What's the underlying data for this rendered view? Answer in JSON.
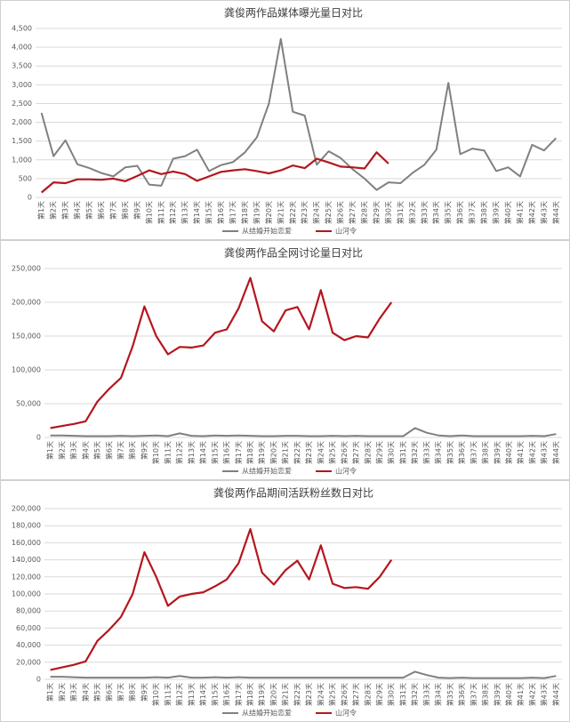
{
  "chart_data": [
    {
      "type": "line",
      "title": "龚俊两作品媒体曝光量日对比",
      "categories": [
        "第1天",
        "第2天",
        "第3天",
        "第4天",
        "第5天",
        "第6天",
        "第7天",
        "第8天",
        "第9天",
        "第10天",
        "第11天",
        "第12天",
        "第13天",
        "第14天",
        "第15天",
        "第16天",
        "第17天",
        "第18天",
        "第19天",
        "第20天",
        "第21天",
        "第22天",
        "第23天",
        "第24天",
        "第25天",
        "第26天",
        "第27天",
        "第28天",
        "第29天",
        "第30天",
        "第31天",
        "第32天",
        "第33天",
        "第34天",
        "第35天",
        "第36天",
        "第37天",
        "第38天",
        "第39天",
        "第40天",
        "第41天",
        "第42天",
        "第43天",
        "第44天"
      ],
      "series": [
        {
          "name": "从结婚开始恋爱",
          "color": "#808080",
          "values": [
            2250,
            1100,
            1520,
            880,
            780,
            650,
            560,
            800,
            840,
            340,
            310,
            1030,
            1100,
            1270,
            700,
            860,
            940,
            1200,
            1600,
            2500,
            4220,
            2280,
            2180,
            870,
            1230,
            1050,
            750,
            500,
            200,
            400,
            380,
            650,
            870,
            1270,
            3050,
            1150,
            1300,
            1250,
            700,
            800,
            560,
            1400,
            1250,
            1580
          ]
        },
        {
          "name": "山河令",
          "color": "#b5161e",
          "values": [
            130,
            400,
            380,
            480,
            480,
            470,
            500,
            430,
            570,
            720,
            620,
            690,
            620,
            440,
            560,
            680,
            720,
            750,
            700,
            640,
            720,
            850,
            780,
            1030,
            930,
            820,
            800,
            770,
            1200,
            900,
            null,
            null,
            null,
            null,
            null,
            null,
            null,
            null,
            null,
            null,
            null,
            null,
            null,
            null
          ]
        }
      ],
      "ylim": [
        0,
        4500
      ],
      "yticks": [
        0,
        500,
        {
          "value": 1000,
          "label": "1,000"
        },
        {
          "value": 1500,
          "label": "1,500"
        },
        {
          "value": 2000,
          "label": "2,000"
        },
        {
          "value": 2500,
          "label": "2,500"
        },
        {
          "value": 3000,
          "label": "3,000"
        },
        {
          "value": 3500,
          "label": "3,500"
        },
        {
          "value": 4000,
          "label": "4,000"
        },
        {
          "value": 4500,
          "label": "4,500"
        }
      ],
      "grid": true,
      "legend": "bottom"
    },
    {
      "type": "line",
      "title": "龚俊两作品全网讨论量日对比",
      "categories": [
        "第1天",
        "第2天",
        "第3天",
        "第4天",
        "第5天",
        "第6天",
        "第7天",
        "第8天",
        "第9天",
        "第10天",
        "第11天",
        "第12天",
        "第13天",
        "第14天",
        "第15天",
        "第16天",
        "第17天",
        "第18天",
        "第19天",
        "第20天",
        "第21天",
        "第22天",
        "第23天",
        "第24天",
        "第25天",
        "第26天",
        "第27天",
        "第28天",
        "第29天",
        "第30天",
        "第31天",
        "第32天",
        "第33天",
        "第34天",
        "第35天",
        "第36天",
        "第37天",
        "第38天",
        "第39天",
        "第40天",
        "第41天",
        "第42天",
        "第43天",
        "第44天"
      ],
      "series": [
        {
          "name": "从结婚开始恋爱",
          "color": "#808080",
          "values": [
            3000,
            3000,
            2500,
            2000,
            2000,
            2000,
            2500,
            2000,
            2500,
            3000,
            2000,
            6000,
            2500,
            2000,
            3000,
            2500,
            3000,
            2500,
            2000,
            2000,
            2500,
            2500,
            2000,
            2000,
            2500,
            2000,
            2500,
            2000,
            2000,
            2000,
            2000,
            14000,
            7000,
            3000,
            2000,
            3000,
            2000,
            2000,
            2000,
            2000,
            2000,
            2500,
            2000,
            5000
          ]
        },
        {
          "name": "山河令",
          "color": "#b5161e",
          "values": [
            14000,
            17000,
            20000,
            24000,
            53000,
            72000,
            88000,
            135000,
            194000,
            150000,
            123000,
            134000,
            133000,
            136000,
            155000,
            160000,
            191000,
            236000,
            172000,
            157000,
            188000,
            193000,
            160000,
            218000,
            155000,
            144000,
            150000,
            148000,
            176000,
            200000,
            null,
            null,
            null,
            null,
            null,
            null,
            null,
            null,
            null,
            null,
            null,
            null,
            null,
            null
          ]
        }
      ],
      "ylim": [
        0,
        250000
      ],
      "yticks": [
        0,
        {
          "value": 50000,
          "label": "50,000"
        },
        {
          "value": 100000,
          "label": "100,000"
        },
        {
          "value": 150000,
          "label": "150,000"
        },
        {
          "value": 200000,
          "label": "200,000"
        },
        {
          "value": 250000,
          "label": "250,000"
        }
      ],
      "grid": true,
      "legend": "bottom"
    },
    {
      "type": "line",
      "title": "龚俊两作品期间活跃粉丝数日对比",
      "categories": [
        "第1天",
        "第2天",
        "第3天",
        "第4天",
        "第5天",
        "第6天",
        "第7天",
        "第8天",
        "第9天",
        "第10天",
        "第11天",
        "第12天",
        "第13天",
        "第14天",
        "第15天",
        "第16天",
        "第17天",
        "第18天",
        "第19天",
        "第20天",
        "第21天",
        "第22天",
        "第23天",
        "第24天",
        "第25天",
        "第26天",
        "第27天",
        "第28天",
        "第29天",
        "第30天",
        "第31天",
        "第32天",
        "第33天",
        "第34天",
        "第35天",
        "第36天",
        "第37天",
        "第38天",
        "第39天",
        "第40天",
        "第41天",
        "第42天",
        "第43天",
        "第44天"
      ],
      "series": [
        {
          "name": "从结婚开始恋爱",
          "color": "#808080",
          "values": [
            3000,
            3000,
            2500,
            2000,
            2000,
            2000,
            2000,
            2000,
            2000,
            2500,
            2000,
            4000,
            2000,
            2000,
            2500,
            2000,
            2500,
            2000,
            2000,
            2000,
            2000,
            2000,
            2000,
            2000,
            2000,
            2000,
            2000,
            2000,
            2000,
            2000,
            2000,
            9000,
            5000,
            2000,
            1500,
            2000,
            1500,
            1500,
            1500,
            1500,
            1500,
            2000,
            1500,
            4000
          ]
        },
        {
          "name": "山河令",
          "color": "#b5161e",
          "values": [
            11000,
            14000,
            17000,
            21000,
            45000,
            58000,
            73000,
            100000,
            149000,
            120000,
            86000,
            97000,
            100000,
            102000,
            109000,
            117000,
            136000,
            176000,
            125000,
            111000,
            128000,
            139000,
            117000,
            157000,
            112000,
            107000,
            108000,
            106000,
            120000,
            140000,
            null,
            null,
            null,
            null,
            null,
            null,
            null,
            null,
            null,
            null,
            null,
            null,
            null,
            null
          ]
        }
      ],
      "ylim": [
        0,
        200000
      ],
      "yticks": [
        0,
        {
          "value": 20000,
          "label": "20,000"
        },
        {
          "value": 40000,
          "label": "40,000"
        },
        {
          "value": 60000,
          "label": "60,000"
        },
        {
          "value": 80000,
          "label": "80,000"
        },
        {
          "value": 100000,
          "label": "100,000"
        },
        {
          "value": 120000,
          "label": "120,000"
        },
        {
          "value": 140000,
          "label": "140,000"
        },
        {
          "value": 160000,
          "label": "160,000"
        },
        {
          "value": 180000,
          "label": "180,000"
        },
        {
          "value": 200000,
          "label": "200,000"
        }
      ],
      "grid": true,
      "legend": "bottom"
    }
  ]
}
